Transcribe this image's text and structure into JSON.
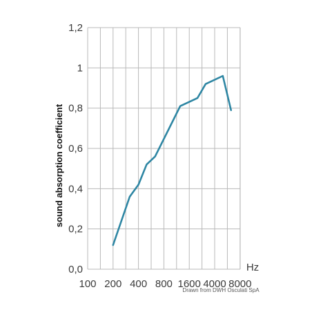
{
  "chart_data": {
    "type": "line",
    "title": "",
    "xlabel": "",
    "x_unit": "Hz",
    "ylabel": "sound absorption coefficient",
    "x_tick_labels": [
      "100",
      "200",
      "400",
      "800",
      "1600",
      "4000",
      "8000"
    ],
    "y_tick_labels": [
      "0,0",
      "0,2",
      "0,4",
      "0,6",
      "0,8",
      "1",
      "1,2"
    ],
    "ylim": [
      0,
      1.2
    ],
    "grid": true,
    "series": [
      {
        "color": "#2e86a3",
        "points": [
          {
            "x": 200,
            "y": 0.12
          },
          {
            "x": 315,
            "y": 0.36
          },
          {
            "x": 400,
            "y": 0.42
          },
          {
            "x": 500,
            "y": 0.52
          },
          {
            "x": 630,
            "y": 0.56
          },
          {
            "x": 1250,
            "y": 0.81
          },
          {
            "x": 2000,
            "y": 0.85
          },
          {
            "x": 2500,
            "y": 0.92
          },
          {
            "x": 4000,
            "y": 0.96
          },
          {
            "x": 5000,
            "y": 0.79
          }
        ]
      }
    ]
  },
  "credit": "Drawn from DWH Osculati SpA"
}
